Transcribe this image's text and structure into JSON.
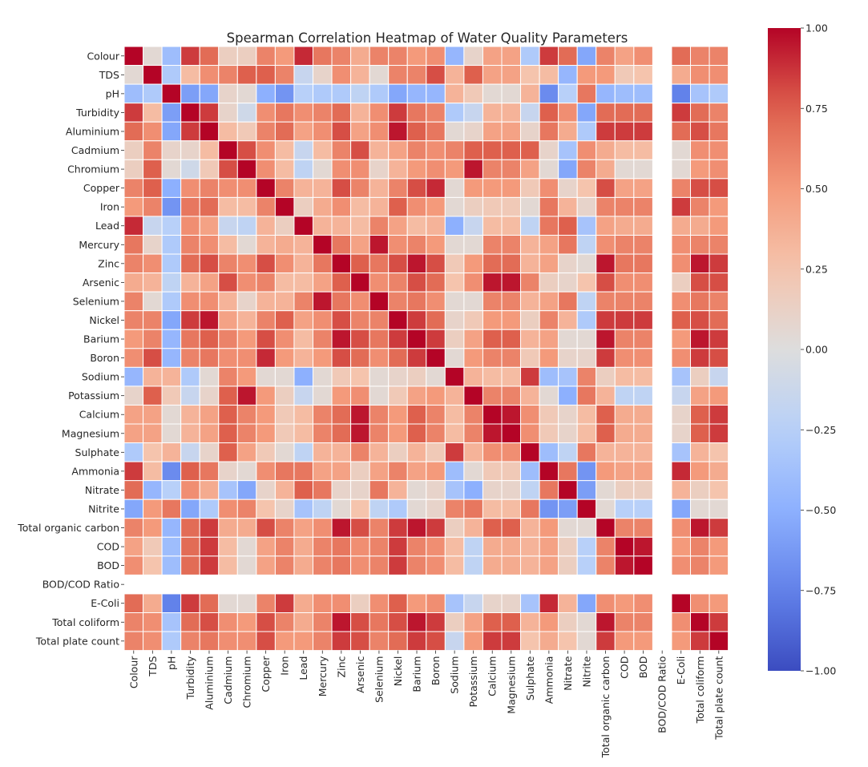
{
  "chart_data": {
    "type": "heatmap",
    "title": "Spearman Correlation Heatmap of Water Quality Parameters",
    "labels": [
      "Colour",
      "TDS",
      "pH",
      "Turbidity",
      "Aluminium",
      "Cadmium",
      "Chromium",
      "Copper",
      "Iron",
      "Lead",
      "Mercury",
      "Zinc",
      "Arsenic",
      "Selenium",
      "Nickel",
      "Barium",
      "Boron",
      "Sodium",
      "Potassium",
      "Calcium",
      "Magnesium",
      "Sulphate",
      "Ammonia",
      "Nitrate",
      "Nitrite",
      "Total organic carbon",
      "COD",
      "BOD",
      "BOD/COD Ratio",
      "E-Coli",
      "Total coliform",
      "Total plate count"
    ],
    "colormap": "coolwarm",
    "vmin": -1.0,
    "vmax": 1.0,
    "colorbar_ticks": [
      "1.00",
      "0.75",
      "0.50",
      "0.25",
      "0.00",
      "−0.25",
      "−0.50",
      "−0.75",
      "−1.00"
    ],
    "matrix": [
      [
        1.0,
        0.05,
        -0.4,
        0.85,
        0.7,
        0.15,
        0.15,
        0.6,
        0.5,
        0.9,
        0.65,
        0.6,
        0.4,
        0.6,
        0.6,
        0.5,
        0.55,
        -0.45,
        0.1,
        0.45,
        0.45,
        -0.3,
        0.85,
        0.7,
        -0.55,
        0.6,
        0.45,
        0.55,
        null,
        0.7,
        0.6,
        0.6
      ],
      [
        0.05,
        1.0,
        -0.3,
        0.3,
        0.55,
        0.6,
        0.75,
        0.75,
        0.6,
        -0.15,
        0.1,
        0.55,
        0.35,
        0.05,
        0.6,
        0.6,
        0.8,
        0.35,
        0.75,
        0.45,
        0.45,
        0.25,
        0.3,
        -0.45,
        0.5,
        0.5,
        0.2,
        0.25,
        null,
        0.4,
        0.55,
        0.55
      ],
      [
        -0.4,
        -0.3,
        1.0,
        -0.6,
        -0.55,
        0.1,
        0.05,
        -0.5,
        -0.65,
        -0.25,
        -0.3,
        -0.3,
        -0.2,
        -0.3,
        -0.55,
        -0.45,
        -0.45,
        0.35,
        0.2,
        0.05,
        0.05,
        0.35,
        -0.7,
        -0.25,
        0.65,
        -0.45,
        -0.4,
        -0.4,
        null,
        -0.75,
        -0.35,
        -0.3
      ],
      [
        0.85,
        0.3,
        -0.6,
        1.0,
        0.85,
        0.1,
        -0.1,
        0.55,
        0.65,
        0.55,
        0.6,
        0.7,
        0.35,
        0.55,
        0.85,
        0.65,
        0.6,
        -0.3,
        -0.15,
        0.35,
        0.35,
        -0.15,
        0.75,
        0.55,
        -0.55,
        0.7,
        0.7,
        0.7,
        null,
        0.85,
        0.7,
        0.6
      ],
      [
        0.7,
        0.55,
        -0.55,
        0.85,
        1.0,
        0.3,
        0.2,
        0.6,
        0.7,
        0.45,
        0.55,
        0.8,
        0.45,
        0.55,
        0.95,
        0.75,
        0.65,
        0.05,
        0.1,
        0.45,
        0.45,
        0.1,
        0.65,
        0.4,
        -0.3,
        0.85,
        0.85,
        0.85,
        null,
        0.7,
        0.8,
        0.65
      ],
      [
        0.15,
        0.6,
        0.1,
        0.1,
        0.3,
        1.0,
        0.8,
        0.55,
        0.3,
        -0.15,
        0.3,
        0.6,
        0.8,
        0.35,
        0.45,
        0.6,
        0.55,
        0.6,
        0.75,
        0.75,
        0.75,
        0.75,
        0.1,
        -0.35,
        0.55,
        0.4,
        0.3,
        0.3,
        null,
        0.05,
        0.55,
        0.55
      ],
      [
        0.15,
        0.75,
        0.05,
        -0.1,
        0.2,
        0.8,
        1.0,
        0.55,
        0.3,
        -0.2,
        0.05,
        0.55,
        0.55,
        0.1,
        0.35,
        0.5,
        0.55,
        0.5,
        0.95,
        0.6,
        0.6,
        0.45,
        0.05,
        -0.55,
        0.6,
        0.4,
        0.05,
        0.05,
        null,
        0.05,
        0.5,
        0.55
      ],
      [
        0.6,
        0.75,
        -0.5,
        0.55,
        0.6,
        0.55,
        0.55,
        1.0,
        0.6,
        0.35,
        0.35,
        0.8,
        0.6,
        0.35,
        0.6,
        0.8,
        0.9,
        0.05,
        0.5,
        0.5,
        0.5,
        0.2,
        0.55,
        0.1,
        0.25,
        0.8,
        0.45,
        0.45,
        null,
        0.6,
        0.8,
        0.8
      ],
      [
        0.5,
        0.6,
        -0.65,
        0.65,
        0.7,
        0.3,
        0.3,
        0.6,
        1.0,
        0.15,
        0.4,
        0.55,
        0.3,
        0.35,
        0.75,
        0.55,
        0.5,
        0.05,
        0.15,
        0.2,
        0.2,
        0.05,
        0.65,
        0.35,
        0.1,
        0.6,
        0.6,
        0.6,
        null,
        0.85,
        0.6,
        0.5
      ],
      [
        0.9,
        -0.15,
        -0.25,
        0.55,
        0.45,
        -0.15,
        -0.2,
        0.35,
        0.15,
        1.0,
        0.35,
        0.35,
        0.3,
        0.6,
        0.45,
        0.3,
        0.35,
        -0.5,
        -0.15,
        0.3,
        0.3,
        -0.2,
        0.65,
        0.75,
        -0.35,
        0.45,
        0.4,
        0.4,
        null,
        0.4,
        0.4,
        0.5
      ],
      [
        0.65,
        0.1,
        -0.3,
        0.6,
        0.55,
        0.3,
        0.05,
        0.35,
        0.4,
        0.35,
        1.0,
        0.65,
        0.45,
        0.95,
        0.55,
        0.6,
        0.5,
        0.05,
        0.05,
        0.6,
        0.6,
        0.35,
        0.45,
        0.65,
        -0.2,
        0.55,
        0.6,
        0.6,
        null,
        0.55,
        0.6,
        0.6
      ],
      [
        0.6,
        0.55,
        -0.3,
        0.7,
        0.8,
        0.6,
        0.55,
        0.8,
        0.55,
        0.35,
        0.65,
        1.0,
        0.75,
        0.65,
        0.8,
        0.95,
        0.8,
        0.2,
        0.5,
        0.7,
        0.7,
        0.35,
        0.45,
        0.1,
        0.05,
        0.95,
        0.65,
        0.65,
        null,
        0.55,
        0.95,
        0.85
      ],
      [
        0.4,
        0.35,
        -0.2,
        0.35,
        0.45,
        0.8,
        0.55,
        0.6,
        0.3,
        0.3,
        0.45,
        0.75,
        1.0,
        0.55,
        0.6,
        0.8,
        0.7,
        0.25,
        0.55,
        0.95,
        0.95,
        0.6,
        0.15,
        0.1,
        0.25,
        0.8,
        0.55,
        0.55,
        null,
        0.15,
        0.8,
        0.8
      ],
      [
        0.6,
        0.05,
        -0.3,
        0.55,
        0.55,
        0.35,
        0.1,
        0.35,
        0.35,
        0.6,
        0.95,
        0.65,
        0.55,
        1.0,
        0.6,
        0.65,
        0.55,
        0.05,
        0.05,
        0.6,
        0.6,
        0.35,
        0.45,
        0.65,
        -0.2,
        0.6,
        0.6,
        0.6,
        null,
        0.55,
        0.65,
        0.6
      ],
      [
        0.6,
        0.6,
        -0.55,
        0.85,
        0.95,
        0.45,
        0.35,
        0.6,
        0.75,
        0.45,
        0.55,
        0.8,
        0.6,
        0.6,
        1.0,
        0.85,
        0.7,
        0.1,
        0.2,
        0.5,
        0.5,
        0.15,
        0.6,
        0.35,
        -0.3,
        0.85,
        0.85,
        0.85,
        null,
        0.75,
        0.8,
        0.7
      ],
      [
        0.5,
        0.6,
        -0.45,
        0.65,
        0.75,
        0.6,
        0.5,
        0.8,
        0.55,
        0.3,
        0.6,
        0.95,
        0.8,
        0.65,
        0.85,
        1.0,
        0.85,
        0.15,
        0.45,
        0.75,
        0.75,
        0.35,
        0.45,
        0.05,
        0.05,
        0.95,
        0.6,
        0.6,
        null,
        0.5,
        0.95,
        0.85
      ],
      [
        0.55,
        0.8,
        -0.45,
        0.6,
        0.65,
        0.55,
        0.55,
        0.9,
        0.5,
        0.35,
        0.5,
        0.8,
        0.7,
        0.55,
        0.7,
        0.85,
        1.0,
        0.05,
        0.5,
        0.6,
        0.6,
        0.2,
        0.5,
        0.1,
        0.1,
        0.85,
        0.55,
        0.55,
        null,
        0.55,
        0.85,
        0.8
      ],
      [
        -0.45,
        0.35,
        0.35,
        -0.3,
        0.05,
        0.6,
        0.5,
        0.05,
        0.05,
        -0.5,
        0.05,
        0.2,
        0.25,
        0.05,
        0.1,
        0.15,
        0.05,
        1.0,
        0.35,
        0.3,
        0.3,
        0.85,
        -0.4,
        -0.35,
        0.6,
        0.15,
        0.3,
        0.3,
        null,
        -0.35,
        0.15,
        -0.15
      ],
      [
        0.1,
        0.75,
        0.2,
        -0.15,
        0.1,
        0.75,
        0.95,
        0.5,
        0.15,
        -0.15,
        0.05,
        0.5,
        0.55,
        0.05,
        0.2,
        0.45,
        0.5,
        0.35,
        1.0,
        0.6,
        0.6,
        0.35,
        0.05,
        -0.5,
        0.65,
        0.35,
        -0.2,
        -0.2,
        null,
        -0.15,
        0.45,
        0.5
      ],
      [
        0.45,
        0.45,
        0.05,
        0.35,
        0.45,
        0.75,
        0.6,
        0.5,
        0.2,
        0.3,
        0.6,
        0.7,
        0.95,
        0.6,
        0.5,
        0.75,
        0.6,
        0.3,
        0.6,
        1.0,
        0.95,
        0.55,
        0.2,
        0.1,
        0.3,
        0.75,
        0.4,
        0.4,
        null,
        0.1,
        0.75,
        0.85
      ],
      [
        0.45,
        0.45,
        0.05,
        0.35,
        0.45,
        0.75,
        0.6,
        0.5,
        0.2,
        0.3,
        0.6,
        0.7,
        0.95,
        0.6,
        0.5,
        0.75,
        0.6,
        0.3,
        0.6,
        0.95,
        1.0,
        0.55,
        0.2,
        0.1,
        0.3,
        0.75,
        0.4,
        0.4,
        null,
        0.1,
        0.75,
        0.85
      ],
      [
        -0.3,
        0.25,
        0.35,
        -0.15,
        0.1,
        0.75,
        0.45,
        0.2,
        0.05,
        -0.2,
        0.35,
        0.35,
        0.6,
        0.35,
        0.15,
        0.35,
        0.2,
        0.85,
        0.35,
        0.55,
        0.55,
        1.0,
        -0.4,
        -0.2,
        0.65,
        0.35,
        0.35,
        0.35,
        null,
        -0.35,
        0.35,
        0.25
      ],
      [
        0.85,
        0.3,
        -0.7,
        0.75,
        0.65,
        0.1,
        0.05,
        0.55,
        0.65,
        0.65,
        0.45,
        0.45,
        0.15,
        0.45,
        0.6,
        0.45,
        0.5,
        -0.4,
        0.05,
        0.2,
        0.2,
        -0.4,
        1.0,
        0.65,
        -0.65,
        0.5,
        0.45,
        0.45,
        null,
        0.9,
        0.5,
        0.4
      ],
      [
        0.7,
        -0.45,
        -0.25,
        0.55,
        0.4,
        -0.35,
        -0.55,
        0.1,
        0.35,
        0.75,
        0.65,
        0.1,
        0.1,
        0.65,
        0.35,
        0.05,
        0.1,
        -0.35,
        -0.5,
        0.1,
        0.1,
        -0.2,
        0.65,
        1.0,
        -0.6,
        0.05,
        0.15,
        0.15,
        null,
        0.35,
        0.15,
        0.25
      ],
      [
        -0.55,
        0.5,
        0.65,
        -0.55,
        -0.3,
        0.55,
        0.6,
        0.25,
        0.1,
        -0.35,
        -0.2,
        0.05,
        0.25,
        -0.2,
        -0.3,
        0.05,
        0.1,
        0.6,
        0.65,
        0.3,
        0.3,
        0.65,
        -0.65,
        -0.6,
        1.0,
        0.05,
        -0.25,
        -0.25,
        null,
        -0.55,
        0.05,
        0.05
      ],
      [
        0.6,
        0.5,
        -0.45,
        0.7,
        0.85,
        0.4,
        0.4,
        0.8,
        0.6,
        0.45,
        0.55,
        0.95,
        0.8,
        0.6,
        0.85,
        0.95,
        0.85,
        0.15,
        0.35,
        0.75,
        0.75,
        0.35,
        0.5,
        0.05,
        0.05,
        1.0,
        0.6,
        0.6,
        null,
        0.55,
        0.95,
        0.85
      ],
      [
        0.45,
        0.2,
        -0.4,
        0.7,
        0.85,
        0.3,
        0.05,
        0.45,
        0.6,
        0.4,
        0.6,
        0.65,
        0.55,
        0.6,
        0.85,
        0.6,
        0.55,
        0.3,
        -0.2,
        0.4,
        0.4,
        0.35,
        0.45,
        0.15,
        -0.25,
        0.6,
        1.0,
        0.95,
        null,
        0.5,
        0.6,
        0.5
      ],
      [
        0.55,
        0.25,
        -0.4,
        0.7,
        0.85,
        0.3,
        0.05,
        0.45,
        0.6,
        0.4,
        0.6,
        0.65,
        0.55,
        0.6,
        0.85,
        0.6,
        0.55,
        0.3,
        -0.2,
        0.4,
        0.4,
        0.35,
        0.45,
        0.15,
        -0.25,
        0.6,
        0.95,
        1.0,
        null,
        0.55,
        0.6,
        0.5
      ],
      [
        null,
        null,
        null,
        null,
        null,
        null,
        null,
        null,
        null,
        null,
        null,
        null,
        null,
        null,
        null,
        null,
        null,
        null,
        null,
        null,
        null,
        null,
        null,
        null,
        null,
        null,
        null,
        null,
        null,
        null,
        null,
        null
      ],
      [
        0.7,
        0.4,
        -0.75,
        0.85,
        0.7,
        0.05,
        0.05,
        0.6,
        0.85,
        0.4,
        0.55,
        0.55,
        0.15,
        0.55,
        0.75,
        0.5,
        0.55,
        -0.35,
        -0.15,
        0.1,
        0.1,
        -0.35,
        0.9,
        0.35,
        -0.55,
        0.55,
        0.5,
        0.55,
        null,
        1.0,
        0.55,
        0.5
      ],
      [
        0.6,
        0.55,
        -0.35,
        0.7,
        0.8,
        0.55,
        0.5,
        0.8,
        0.6,
        0.4,
        0.6,
        0.95,
        0.8,
        0.65,
        0.8,
        0.95,
        0.85,
        0.15,
        0.45,
        0.75,
        0.75,
        0.35,
        0.5,
        0.15,
        0.05,
        0.95,
        0.6,
        0.6,
        null,
        0.55,
        1.0,
        0.85
      ],
      [
        0.6,
        0.55,
        -0.3,
        0.6,
        0.65,
        0.55,
        0.55,
        0.8,
        0.5,
        0.5,
        0.6,
        0.85,
        0.8,
        0.6,
        0.7,
        0.85,
        0.8,
        -0.15,
        0.5,
        0.85,
        0.85,
        0.25,
        0.4,
        0.25,
        0.05,
        0.85,
        0.5,
        0.5,
        null,
        0.5,
        0.85,
        1.0
      ]
    ]
  }
}
